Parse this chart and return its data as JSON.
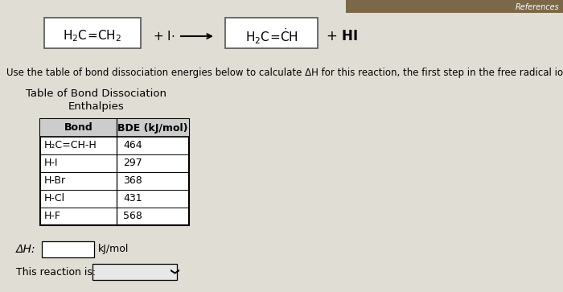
{
  "bg_color": "#e0ddd4",
  "title_bar_color": "#7a6848",
  "col_headers": [
    "Bond",
    "BDE (kJ/mol)"
  ],
  "table_rows": [
    [
      "H₂C=CH-H",
      "464"
    ],
    [
      "H-I",
      "297"
    ],
    [
      "H-Br",
      "368"
    ],
    [
      "H-Cl",
      "431"
    ],
    [
      "H-F",
      "568"
    ]
  ],
  "delta_h_label": "ΔH:",
  "delta_h_unit": "kJ/mol",
  "reaction_is_label": "This reaction is:",
  "table_title_line1": "Table of Bond Dissociation",
  "table_title_line2": "Enthalpies",
  "instruction_text": "Use the table of bond dissociation energies below to calculate ΔH for this reaction, the first step in the free radical iodination of ethene.",
  "references_text": "References",
  "font_size_rxn": 11,
  "font_size_instr": 8.5,
  "font_size_table_hdr": 9,
  "font_size_table_data": 9,
  "font_size_bottom": 9
}
